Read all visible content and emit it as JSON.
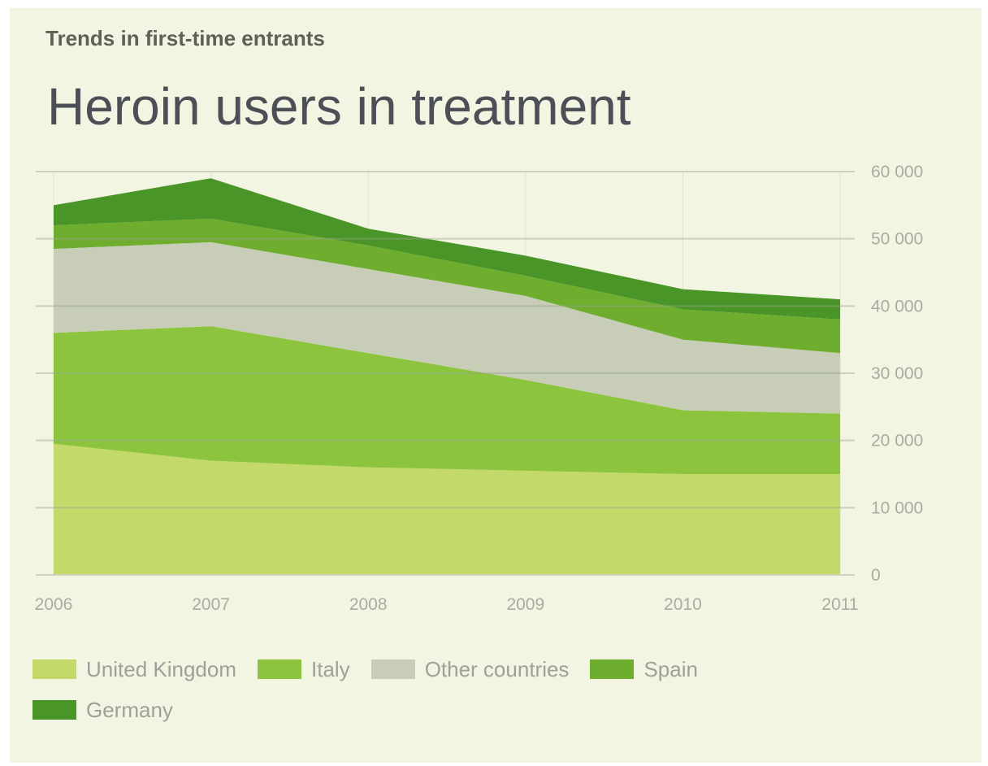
{
  "subtitle": "Trends in first-time entrants",
  "title": "Heroin users in treatment",
  "chart_data": {
    "type": "area",
    "stacked": true,
    "title": "Heroin users in treatment",
    "subtitle": "Trends in first-time entrants",
    "x": [
      "2006",
      "2007",
      "2008",
      "2009",
      "2010",
      "2011"
    ],
    "ylim": [
      0,
      60000
    ],
    "y_ticks": [
      0,
      10000,
      20000,
      30000,
      40000,
      50000,
      60000
    ],
    "y_tick_labels": [
      "0",
      "10 000",
      "20 000",
      "30 000",
      "40 000",
      "50 000",
      "60 000"
    ],
    "y_axis_position": "right",
    "grid": true,
    "legend_position": "bottom",
    "series": [
      {
        "name": "United Kingdom",
        "color": "#c3d96a",
        "values": [
          19500,
          17000,
          16000,
          15500,
          15000,
          15000
        ]
      },
      {
        "name": "Italy",
        "color": "#8cc43e",
        "values": [
          16500,
          20000,
          17000,
          13500,
          9500,
          9000
        ]
      },
      {
        "name": "Other countries",
        "color": "#c7cdb6",
        "values": [
          12500,
          12500,
          12500,
          12500,
          10500,
          9000
        ]
      },
      {
        "name": "Spain",
        "color": "#6fad2f",
        "values": [
          3500,
          3500,
          3500,
          3000,
          4500,
          5000
        ]
      },
      {
        "name": "Germany",
        "color": "#4a9528",
        "values": [
          3000,
          6000,
          2500,
          3000,
          3000,
          3000
        ]
      }
    ]
  }
}
